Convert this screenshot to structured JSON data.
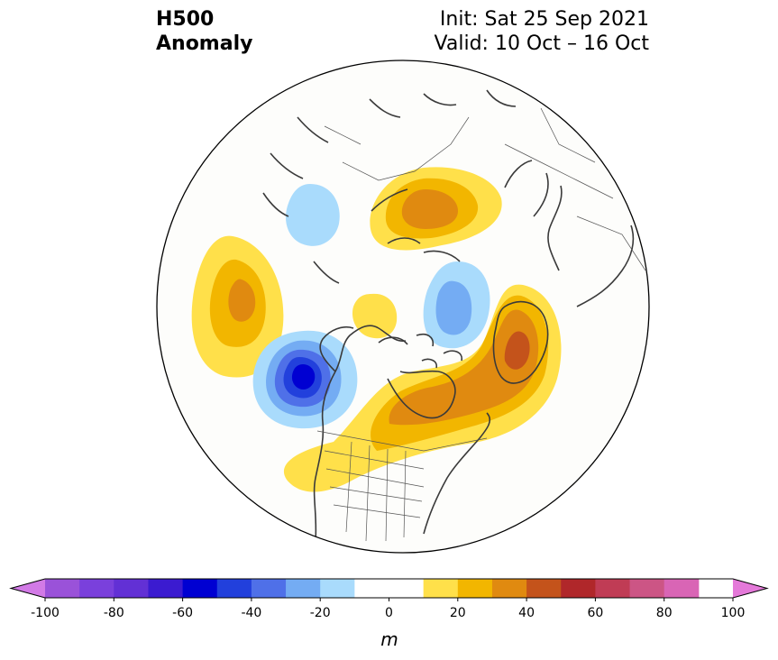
{
  "title": {
    "left_line1": "H500",
    "left_line2": "Anomaly",
    "right_line1": "Init: Sat 25 Sep 2021",
    "right_line2": "Valid: 10 Oct – 16 Oct"
  },
  "colorbar": {
    "unit": "m",
    "ticks": [
      "-100",
      "-80",
      "-60",
      "-40",
      "-20",
      "0",
      "20",
      "40",
      "60",
      "80",
      "100"
    ],
    "tick_values": [
      -100,
      -80,
      -60,
      -40,
      -20,
      0,
      20,
      40,
      60,
      80,
      100
    ],
    "bins": [
      {
        "from": -100,
        "to": -90,
        "color": "#9a52d9"
      },
      {
        "from": -90,
        "to": -80,
        "color": "#7a40dc"
      },
      {
        "from": -80,
        "to": -70,
        "color": "#6230d5"
      },
      {
        "from": -70,
        "to": -60,
        "color": "#3b1bd0"
      },
      {
        "from": -60,
        "to": -50,
        "color": "#0000d2"
      },
      {
        "from": -50,
        "to": -40,
        "color": "#2240dc"
      },
      {
        "from": -40,
        "to": -30,
        "color": "#4f70e8"
      },
      {
        "from": -30,
        "to": -20,
        "color": "#74acf3"
      },
      {
        "from": -20,
        "to": -10,
        "color": "#a9dbfc"
      },
      {
        "from": -10,
        "to": 10,
        "color": "#ffffff"
      },
      {
        "from": 10,
        "to": 20,
        "color": "#ffe04a"
      },
      {
        "from": 20,
        "to": 30,
        "color": "#f2b600"
      },
      {
        "from": 30,
        "to": 40,
        "color": "#e08a10"
      },
      {
        "from": 40,
        "to": 50,
        "color": "#c4531b"
      },
      {
        "from": 50,
        "to": 60,
        "color": "#b0272a"
      },
      {
        "from": 60,
        "to": 70,
        "color": "#c03c55"
      },
      {
        "from": 70,
        "to": 80,
        "color": "#cc5585"
      },
      {
        "from": 80,
        "to": 90,
        "color": "#d965b5"
      }
    ],
    "extend_low_color": "#d27ae6",
    "extend_high_color": "#e479d9"
  },
  "map": {
    "projection": "north-polar-stereographic",
    "anomaly_centers": [
      {
        "name": "north-pacific-ridge",
        "sign": "positive",
        "peak": 40
      },
      {
        "name": "gulf-of-alaska-trough",
        "sign": "negative",
        "peak": -60
      },
      {
        "name": "canada-greenland-ridge",
        "sign": "positive",
        "peak": 50
      },
      {
        "name": "barents-kara-ridge",
        "sign": "positive",
        "peak": 40
      },
      {
        "name": "arctic-low",
        "sign": "negative",
        "peak": -30
      },
      {
        "name": "siberia-low",
        "sign": "negative",
        "peak": -20
      },
      {
        "name": "arctic-small-ridge",
        "sign": "positive",
        "peak": 20
      }
    ]
  }
}
